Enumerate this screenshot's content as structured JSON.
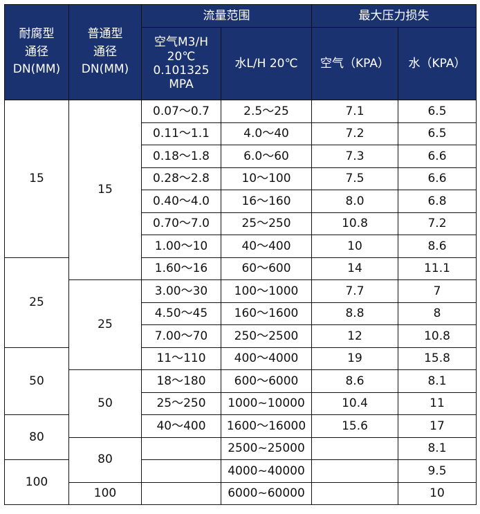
{
  "header": {
    "col_corrosion": [
      "耐腐型",
      "通径",
      "DN(MM)"
    ],
    "col_normal": [
      "普通型",
      "通径",
      "DN(MM)"
    ],
    "flow_range": "流量范围",
    "max_pressure_loss": "最大压力损失",
    "air_flow": [
      "空气M3/H",
      "20℃",
      "0.101325",
      "MPA"
    ],
    "water_flow": "水L/H 20℃",
    "air_loss": "空气（KPA）",
    "water_loss": "水（KPA）"
  },
  "corrosion_dn": [
    "15",
    "25",
    "50",
    "80",
    "100"
  ],
  "normal_dn": [
    "15",
    "25",
    "50",
    "80",
    "100"
  ],
  "rows": [
    {
      "air": "0.07～0.7",
      "water": "2.5～25",
      "air_loss": "7.1",
      "water_loss": "6.5"
    },
    {
      "air": "0.11～1.1",
      "water": "4.0～40",
      "air_loss": "7.2",
      "water_loss": "6.5"
    },
    {
      "air": "0.18～1.8",
      "water": "6.0～60",
      "air_loss": "7.3",
      "water_loss": "6.6"
    },
    {
      "air": "0.28～2.8",
      "water": "10～100",
      "air_loss": "7.5",
      "water_loss": "6.6"
    },
    {
      "air": "0.40～4.0",
      "water": "16～160",
      "air_loss": "8.0",
      "water_loss": "6.8"
    },
    {
      "air": "0.70～7.0",
      "water": "25～250",
      "air_loss": "10.8",
      "water_loss": "7.2"
    },
    {
      "air": "1.00～10",
      "water": "40～400",
      "air_loss": "10",
      "water_loss": "8.6"
    },
    {
      "air": "1.60～16",
      "water": "60～600",
      "air_loss": "14",
      "water_loss": "11.1"
    },
    {
      "air": "3.00～30",
      "water": "100～1000",
      "air_loss": "7.7",
      "water_loss": "7"
    },
    {
      "air": "4.50～45",
      "water": "160～1600",
      "air_loss": "8.8",
      "water_loss": "8"
    },
    {
      "air": "7.00～70",
      "water": "250～2500",
      "air_loss": "12",
      "water_loss": "10.8"
    },
    {
      "air": "11～110",
      "water": "400～4000",
      "air_loss": "19",
      "water_loss": "15.8"
    },
    {
      "air": "18～180",
      "water": "600～6000",
      "air_loss": "8.6",
      "water_loss": "8.1"
    },
    {
      "air": "25～250",
      "water": "1000~10000",
      "air_loss": "10.4",
      "water_loss": "11"
    },
    {
      "air": "40～400",
      "water": "1600～16000",
      "air_loss": "15.6",
      "water_loss": "17"
    },
    {
      "air": "",
      "water": "2500~25000",
      "air_loss": "",
      "water_loss": "8.1"
    },
    {
      "air": "",
      "water": "4000~40000",
      "air_loss": "",
      "water_loss": "9.5"
    },
    {
      "air": "",
      "water": "6000~60000",
      "air_loss": "",
      "water_loss": "10"
    }
  ],
  "colors": {
    "header_bg": "#1b3270",
    "header_text": "#ffffff",
    "border": "#111111"
  }
}
